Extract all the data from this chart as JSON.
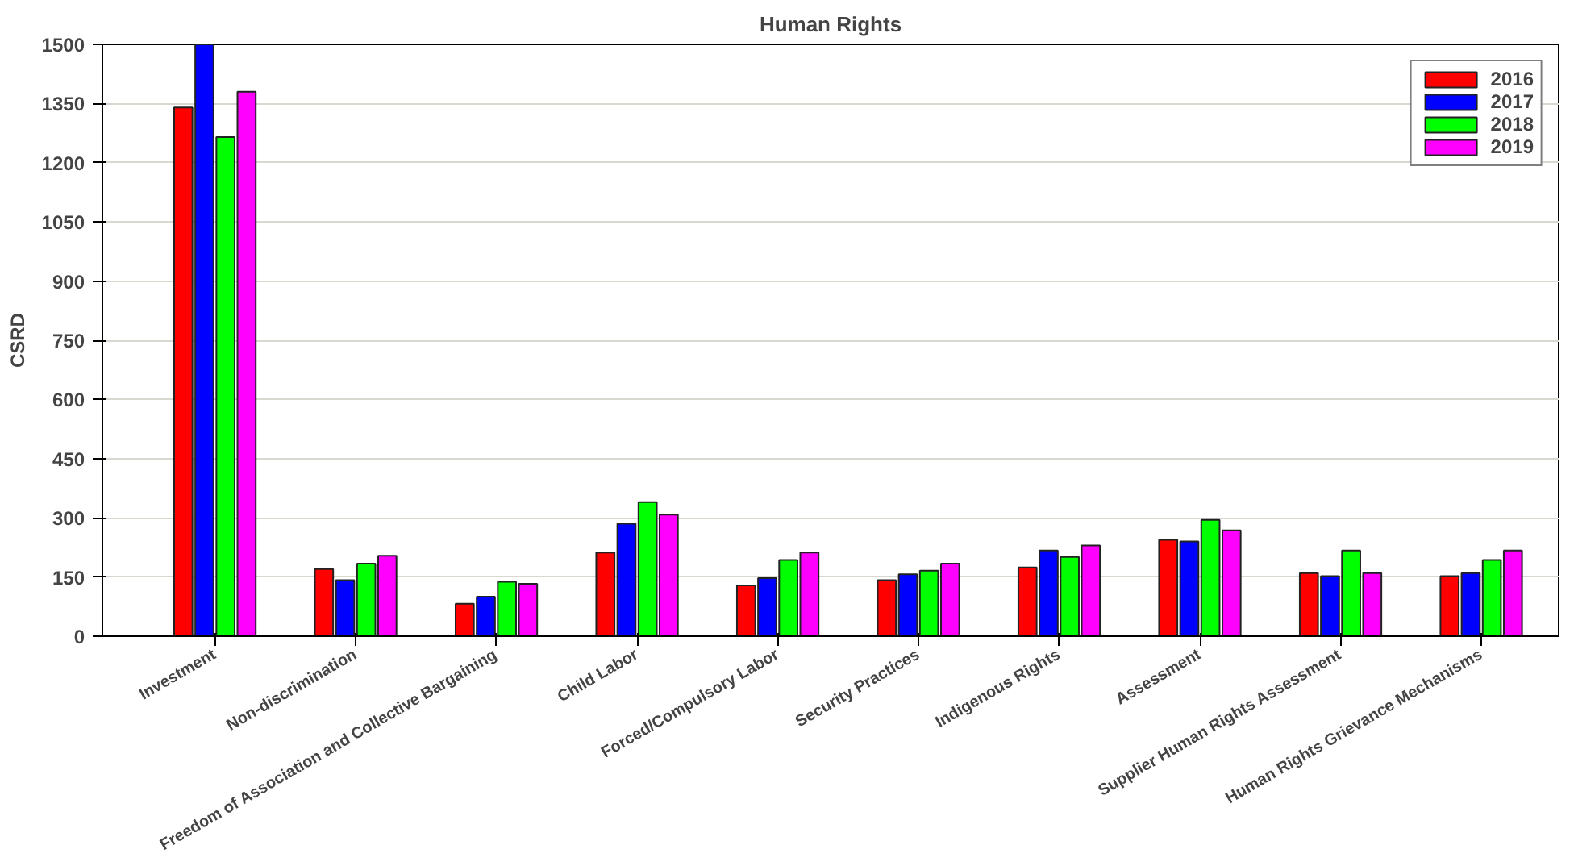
{
  "chart_data": {
    "type": "bar",
    "title": "Human Rights",
    "ylabel": "CSRD",
    "categories": [
      "Investment",
      "Non-discrimination",
      "Freedom of Association and Collective Bargaining",
      "Child Labor",
      "Forced/Compulsory Labor",
      "Security Practices",
      "Indigenous Rights",
      "Assessment",
      "Supplier Human Rights Assessment",
      "Human Rights Grievance Mechanisms"
    ],
    "series": [
      {
        "name": "2016",
        "color": "#ff0000",
        "values": [
          1340,
          170,
          82,
          212,
          129,
          142,
          174,
          244,
          160,
          152
        ]
      },
      {
        "name": "2017",
        "color": "#0000ff",
        "values": [
          1500,
          142,
          100,
          285,
          147,
          157,
          217,
          240,
          152,
          160
        ]
      },
      {
        "name": "2018",
        "color": "#00ff00",
        "values": [
          1265,
          184,
          138,
          340,
          193,
          166,
          201,
          295,
          217,
          193
        ]
      },
      {
        "name": "2019",
        "color": "#ff00ff",
        "values": [
          1380,
          204,
          133,
          308,
          212,
          184,
          230,
          268,
          160,
          217
        ]
      }
    ],
    "ylim": [
      0,
      1500
    ],
    "yticks": [
      0,
      150,
      300,
      450,
      600,
      750,
      900,
      1050,
      1200,
      1350,
      1500
    ],
    "grid": "y",
    "legend": "top right"
  }
}
